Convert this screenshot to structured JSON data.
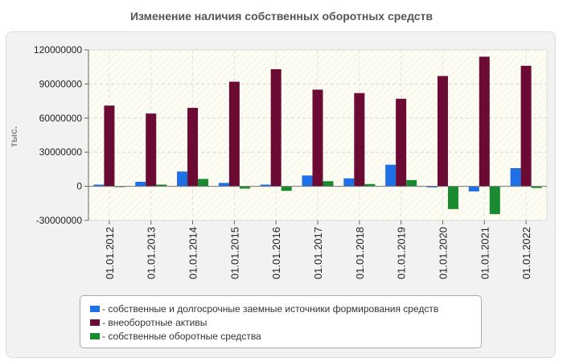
{
  "chart_data": {
    "type": "bar",
    "title": "Изменение наличия собственных оборотных средств",
    "ylabel": "тыс.",
    "xlabel": "",
    "categories": [
      "01.01.2012",
      "01.01.2013",
      "01.01.2014",
      "01.01.2015",
      "01.01.2016",
      "01.01.2017",
      "01.01.2018",
      "01.01.2019",
      "01.01.2020",
      "01.01.2021",
      "01.01.2022"
    ],
    "ylim": [
      -30000000,
      120000000
    ],
    "yticks": [
      -30000000,
      0,
      30000000,
      60000000,
      90000000,
      120000000
    ],
    "ytick_labels": [
      "-30000000",
      "0",
      "30000000",
      "60000000",
      "90000000",
      "120000000"
    ],
    "grid": true,
    "legend_position": "bottom",
    "series": [
      {
        "name": "- собственные и долгосрочные заемные источники формирования средств",
        "color": "#1f6fe6",
        "values": [
          1500000,
          4000000,
          13000000,
          3000000,
          1500000,
          9500000,
          7000000,
          19000000,
          -1000000,
          -4500000,
          16000000
        ]
      },
      {
        "name": "- внеоборотные активы",
        "color": "#6b0a33",
        "values": [
          71000000,
          64000000,
          69000000,
          92000000,
          103000000,
          85000000,
          82000000,
          77000000,
          97000000,
          114000000,
          106000000
        ]
      },
      {
        "name": "- собственные оборотные средства",
        "color": "#1a8a2e",
        "values": [
          -500000,
          1500000,
          6500000,
          -2000000,
          -4000000,
          4500000,
          2000000,
          5500000,
          -20000000,
          -24500000,
          -1500000
        ]
      }
    ]
  }
}
